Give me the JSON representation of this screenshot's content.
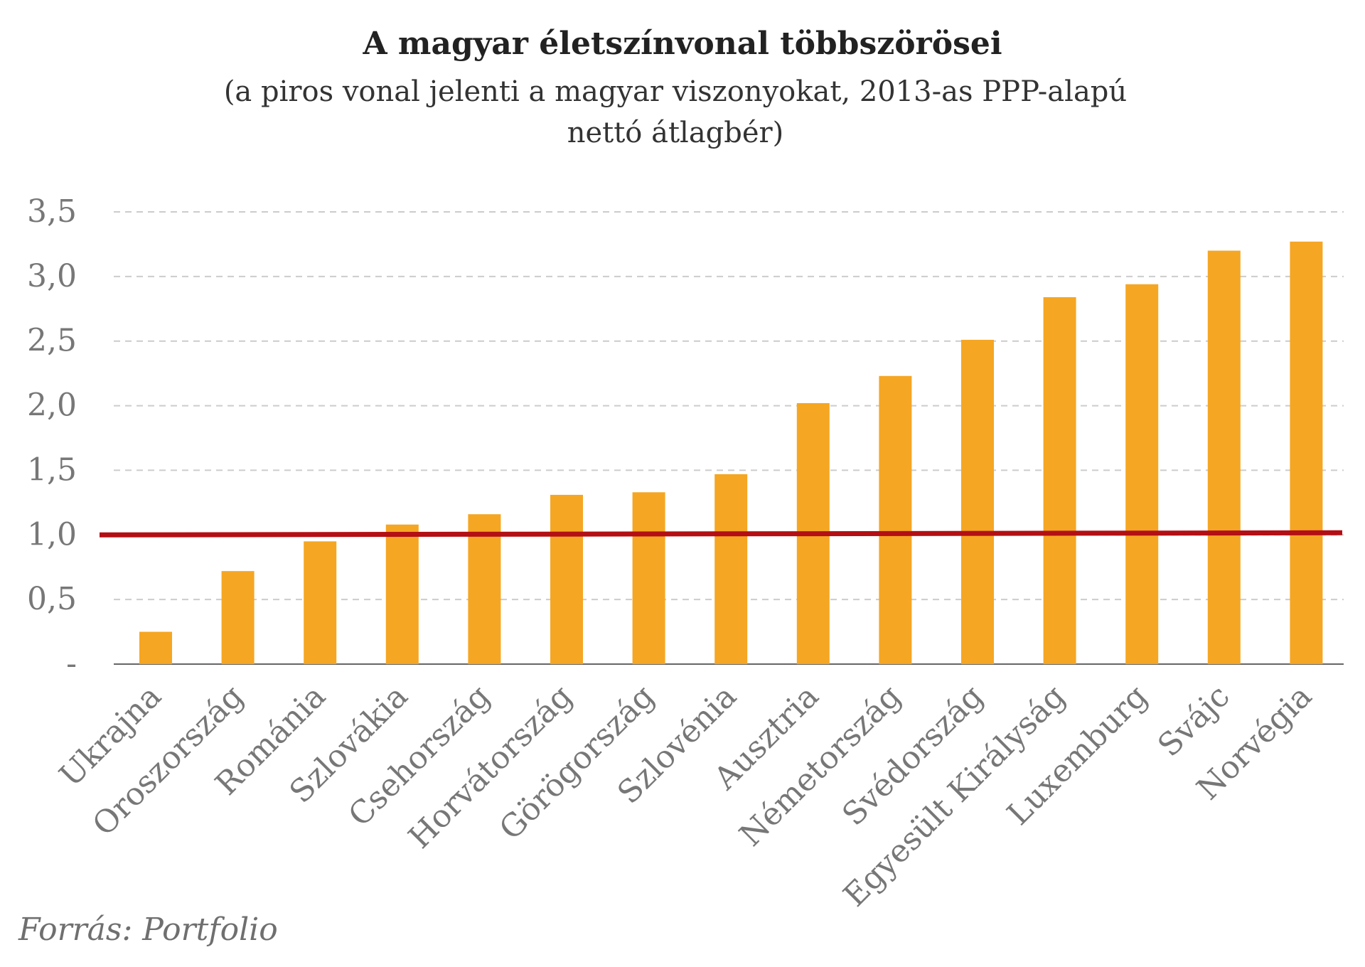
{
  "colors": {
    "bar": "#f5a623",
    "reference_line": "#b30f14",
    "gridline": "#cccccc",
    "axis_text": "#777777",
    "axis_line": "#666666"
  },
  "chart_data": {
    "type": "bar",
    "title": "A magyar életszínvonal többszörösei",
    "subtitle_lines": [
      "(a piros vonal jelenti a magyar viszonyokat, 2013-as PPP-alapú",
      "nettó átlagbér)"
    ],
    "xlabel": "",
    "ylabel": "",
    "ylim": [
      0,
      3.5
    ],
    "yticks": [
      {
        "value": 0,
        "label": "-"
      },
      {
        "value": 0.5,
        "label": "0,5"
      },
      {
        "value": 1.0,
        "label": "1,0"
      },
      {
        "value": 1.5,
        "label": "1,5"
      },
      {
        "value": 2.0,
        "label": "2,0"
      },
      {
        "value": 2.5,
        "label": "2,5"
      },
      {
        "value": 3.0,
        "label": "3,0"
      },
      {
        "value": 3.5,
        "label": "3,5"
      }
    ],
    "grid": true,
    "grid_style": "dashed horizontal",
    "categories": [
      "Ukrajna",
      "Oroszország",
      "Románia",
      "Szlovákia",
      "Csehország",
      "Horvátország",
      "Görögország",
      "Szlovénia",
      "Ausztria",
      "Németország",
      "Svédország",
      "Egyesült Királyság",
      "Luxemburg",
      "Svájc",
      "Norvégia"
    ],
    "values": [
      0.25,
      0.72,
      0.95,
      1.08,
      1.16,
      1.31,
      1.33,
      1.47,
      2.02,
      2.23,
      2.51,
      2.84,
      2.94,
      3.2,
      3.27
    ],
    "reference_line": {
      "value": 1.0
    }
  },
  "source": "Forrás: Portfolio"
}
